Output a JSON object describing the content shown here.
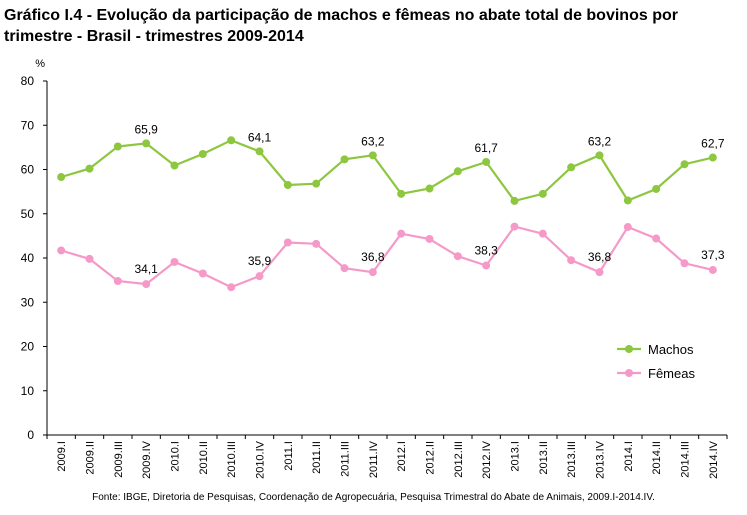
{
  "title_line1": "Gráfico I.4 - Evolução da participação de machos e fêmeas no abate total de bovinos por",
  "title_line2": "trimestre - Brasil - trimestres 2009-2014",
  "source": "Fonte: IBGE, Diretoria de Pesquisas, Coordenação de Agropecuária, Pesquisa Trimestral do Abate de Animais, 2009.I-2014.IV.",
  "chart_data": {
    "type": "line",
    "ylabel": "%",
    "ylim": [
      0,
      80
    ],
    "yticks": [
      0,
      10,
      20,
      30,
      40,
      50,
      60,
      70,
      80
    ],
    "grid": false,
    "legend_position": "bottom-right",
    "categories": [
      "2009.I",
      "2009.II",
      "2009.III",
      "2009.IV",
      "2010.I",
      "2010.II",
      "2010.III",
      "2010.IV",
      "2011.I",
      "2011.II",
      "2011.III",
      "2011.IV",
      "2012.I",
      "2012.II",
      "2012.III",
      "2012.IV",
      "2013.I",
      "2013.II",
      "2013.III",
      "2013.IV",
      "2014.I",
      "2014.II",
      "2014.III",
      "2014.IV"
    ],
    "series": [
      {
        "name": "Machos",
        "color": "#8dc63f",
        "values": [
          58.3,
          60.2,
          65.2,
          65.9,
          60.9,
          63.5,
          66.6,
          64.1,
          56.5,
          56.8,
          62.3,
          63.2,
          54.5,
          55.7,
          59.6,
          61.7,
          52.9,
          54.5,
          60.5,
          63.2,
          53.0,
          55.6,
          61.2,
          62.7
        ],
        "data_labels": {
          "3": "65,9",
          "7": "64,1",
          "11": "63,2",
          "15": "61,7",
          "19": "63,2",
          "23": "62,7"
        }
      },
      {
        "name": "Fêmeas",
        "color": "#f59ac8",
        "values": [
          41.7,
          39.8,
          34.8,
          34.1,
          39.1,
          36.5,
          33.4,
          35.9,
          43.5,
          43.2,
          37.7,
          36.8,
          45.5,
          44.3,
          40.4,
          38.3,
          47.1,
          45.5,
          39.5,
          36.8,
          47.0,
          44.4,
          38.8,
          37.3
        ],
        "data_labels": {
          "3": "34,1",
          "7": "35,9",
          "11": "36,8",
          "15": "38,3",
          "19": "36,8",
          "23": "37,3"
        }
      }
    ]
  }
}
